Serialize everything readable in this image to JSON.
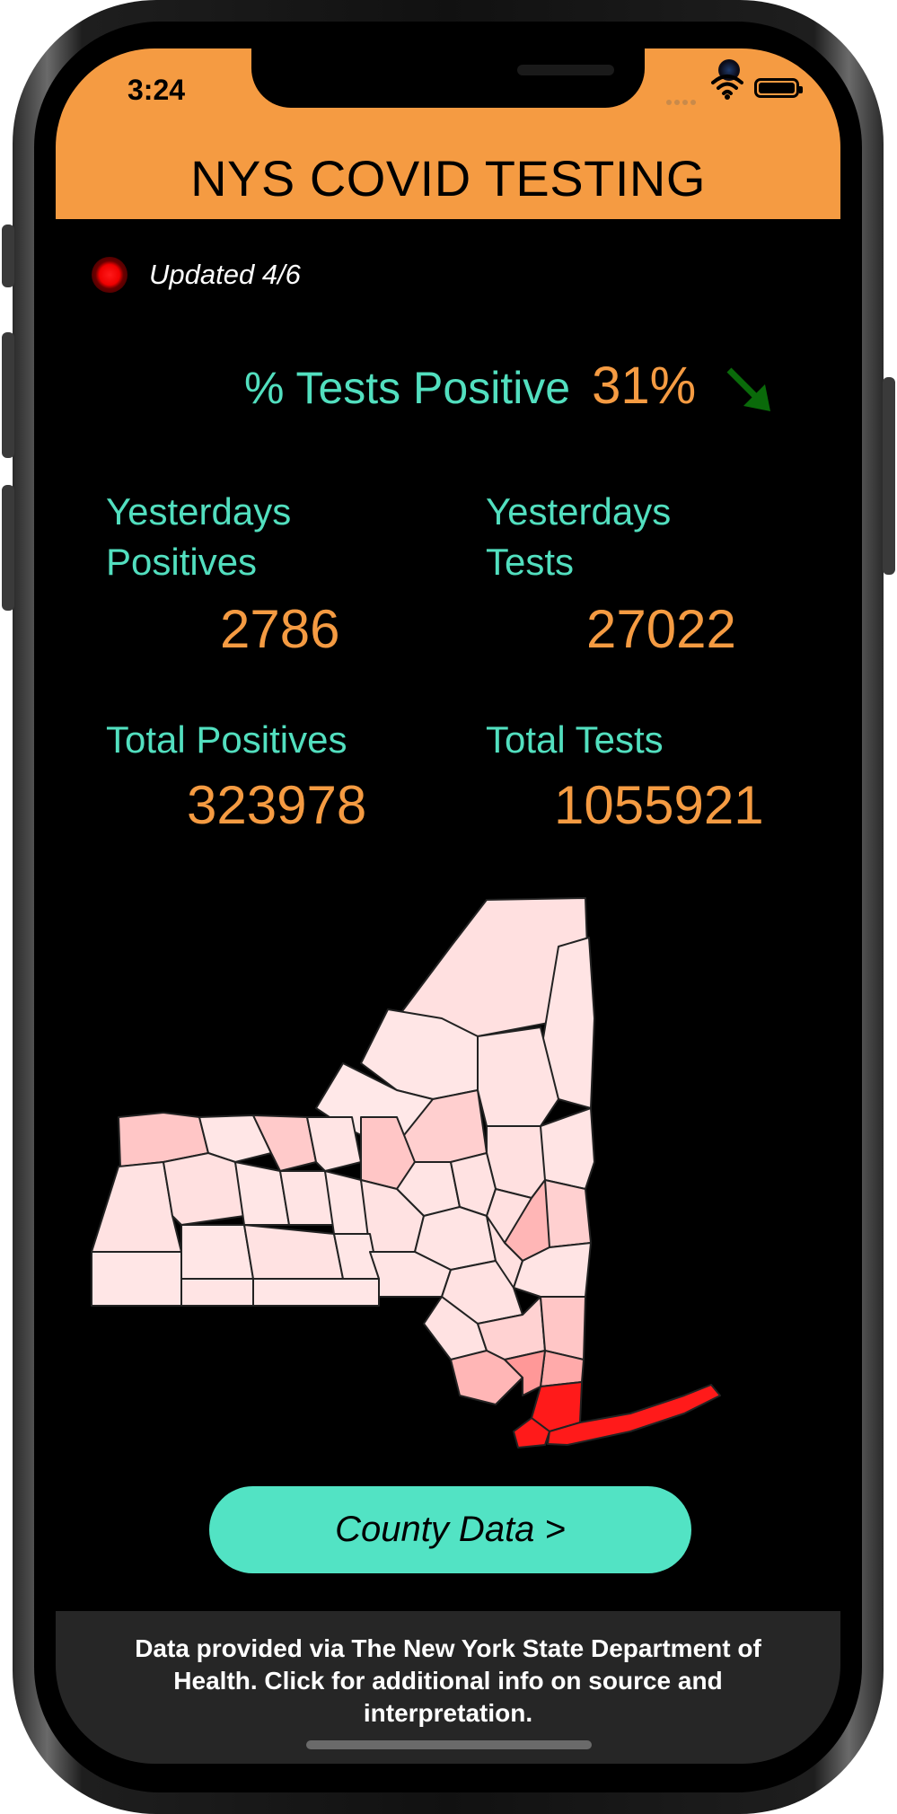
{
  "status_bar": {
    "time": "3:24"
  },
  "app": {
    "title": "NYS COVID TESTING"
  },
  "update": {
    "text": "Updated 4/6"
  },
  "percent_positive": {
    "label": "% Tests Positive",
    "value": "31%",
    "trend": "down"
  },
  "stats": {
    "yesterdays_positives": {
      "label_line1": "Yesterdays",
      "label_line2": "Positives",
      "value": "2786"
    },
    "yesterdays_tests": {
      "label_line1": "Yesterdays",
      "label_line2": "Tests",
      "value": "27022"
    },
    "total_positives": {
      "label": "Total Positives",
      "value": "323978"
    },
    "total_tests": {
      "label": "Total Tests",
      "value": "1055921"
    }
  },
  "county_button": {
    "label": "County Data >"
  },
  "footer": {
    "text": "Data provided via The New York State Department of Health. Click for additional info on source and interpretation."
  },
  "colors": {
    "header": "#f59b42",
    "accent_teal": "#52dfbf",
    "accent_orange": "#f59b42",
    "button": "#52e3c4",
    "trend_down": "#0a6a0a",
    "map_high": "#ff1a1a",
    "map_low": "#ffe0e0"
  }
}
